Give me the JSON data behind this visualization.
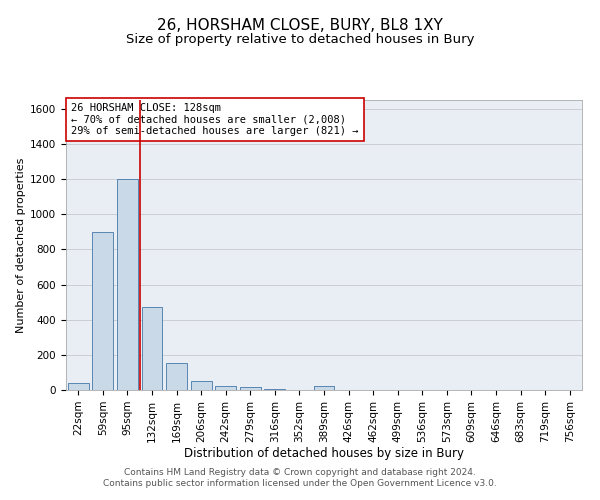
{
  "title1": "26, HORSHAM CLOSE, BURY, BL8 1XY",
  "title2": "Size of property relative to detached houses in Bury",
  "xlabel": "Distribution of detached houses by size in Bury",
  "ylabel": "Number of detached properties",
  "categories": [
    "22sqm",
    "59sqm",
    "95sqm",
    "132sqm",
    "169sqm",
    "206sqm",
    "242sqm",
    "279sqm",
    "316sqm",
    "352sqm",
    "389sqm",
    "426sqm",
    "462sqm",
    "499sqm",
    "536sqm",
    "573sqm",
    "609sqm",
    "646sqm",
    "683sqm",
    "719sqm",
    "756sqm"
  ],
  "values": [
    40,
    900,
    1200,
    470,
    155,
    50,
    25,
    15,
    5,
    0,
    20,
    0,
    0,
    0,
    0,
    0,
    0,
    0,
    0,
    0,
    0
  ],
  "bar_color": "#c9d9e8",
  "bar_edge_color": "#4477aa",
  "vline_color": "#cc0000",
  "vline_index": 2.5,
  "annotation_text": "26 HORSHAM CLOSE: 128sqm\n← 70% of detached houses are smaller (2,008)\n29% of semi-detached houses are larger (821) →",
  "annotation_box_facecolor": "#ffffff",
  "annotation_box_edgecolor": "#cc0000",
  "ylim": [
    0,
    1650
  ],
  "yticks": [
    0,
    200,
    400,
    600,
    800,
    1000,
    1200,
    1400,
    1600
  ],
  "grid_color": "#c8c8d0",
  "plot_bg_color": "#e8eef4",
  "footer_text": "Contains HM Land Registry data © Crown copyright and database right 2024.\nContains public sector information licensed under the Open Government Licence v3.0.",
  "title1_fontsize": 11,
  "title2_fontsize": 9.5,
  "xlabel_fontsize": 8.5,
  "ylabel_fontsize": 8,
  "tick_fontsize": 7.5,
  "annotation_fontsize": 7.5,
  "footer_fontsize": 6.5
}
